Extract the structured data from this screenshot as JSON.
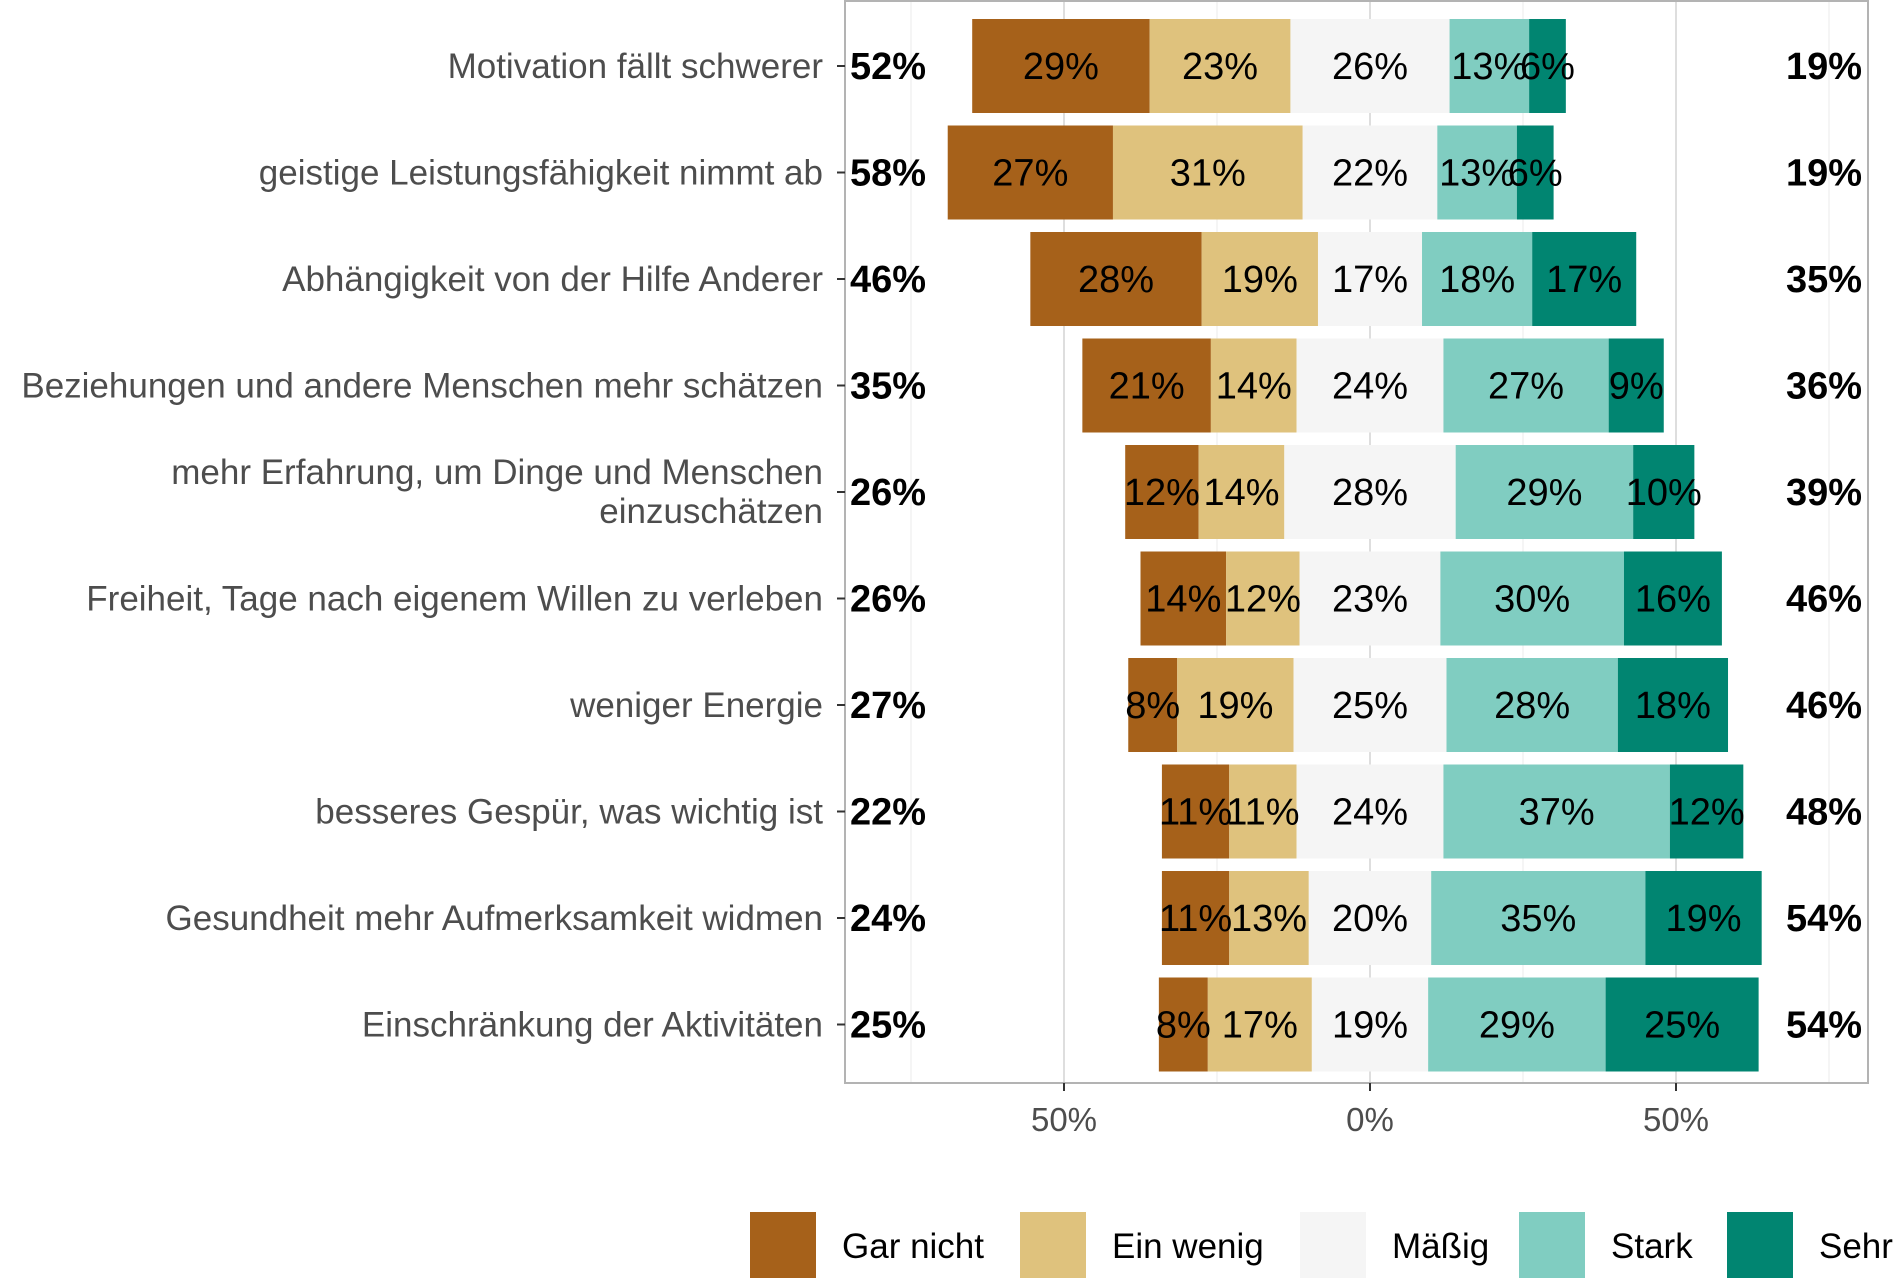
{
  "chart_data": {
    "type": "bar",
    "orientation": "horizontal",
    "stacked": "diverging",
    "title": "",
    "xlabel": "",
    "ylabel": "",
    "xlim": [
      -100,
      100
    ],
    "x_ticks": [
      -50,
      0,
      50
    ],
    "x_tick_labels": [
      "50%",
      "0%",
      "50%"
    ],
    "grid": true,
    "legend_position": "bottom",
    "levels": [
      "Gar nicht",
      "Ein wenig",
      "Mäßig",
      "Stark",
      "Sehr"
    ],
    "colors": {
      "Gar nicht": "#a6611a",
      "Ein wenig": "#dfc27d",
      "Mäßig": "#f5f5f5",
      "Stark": "#80cdc1",
      "Sehr": "#018571"
    },
    "categories": [
      {
        "label": [
          "Motivation fällt schwerer"
        ],
        "values": [
          29,
          23,
          26,
          13,
          6
        ],
        "value_labels": [
          "29%",
          "23%",
          "26%",
          "13%",
          "6%"
        ],
        "low": "52%",
        "high": "19%"
      },
      {
        "label": [
          "geistige Leistungsfähigkeit nimmt ab"
        ],
        "values": [
          27,
          31,
          22,
          13,
          6
        ],
        "value_labels": [
          "27%",
          "31%",
          "22%",
          "13%",
          "6%"
        ],
        "low": "58%",
        "high": "19%"
      },
      {
        "label": [
          "Abhängigkeit von der Hilfe Anderer"
        ],
        "values": [
          28,
          19,
          17,
          18,
          17
        ],
        "value_labels": [
          "28%",
          "19%",
          "17%",
          "18%",
          "17%"
        ],
        "low": "46%",
        "high": "35%"
      },
      {
        "label": [
          "Beziehungen und andere Menschen mehr schätzen"
        ],
        "values": [
          21,
          14,
          24,
          27,
          9
        ],
        "value_labels": [
          "21%",
          "14%",
          "24%",
          "27%",
          "9%"
        ],
        "low": "35%",
        "high": "36%"
      },
      {
        "label": [
          "mehr Erfahrung, um Dinge und Menschen",
          "einzuschätzen"
        ],
        "values": [
          12,
          14,
          28,
          29,
          10
        ],
        "value_labels": [
          "12%",
          "14%",
          "28%",
          "29%",
          "10%"
        ],
        "low": "26%",
        "high": "39%"
      },
      {
        "label": [
          "Freiheit, Tage nach eigenem Willen zu verleben"
        ],
        "values": [
          14,
          12,
          23,
          30,
          16
        ],
        "value_labels": [
          "14%",
          "12%",
          "23%",
          "30%",
          "16%"
        ],
        "low": "26%",
        "high": "46%"
      },
      {
        "label": [
          "weniger Energie"
        ],
        "values": [
          8,
          19,
          25,
          28,
          18
        ],
        "value_labels": [
          "8%",
          "19%",
          "25%",
          "28%",
          "18%"
        ],
        "low": "27%",
        "high": "46%"
      },
      {
        "label": [
          "besseres Gespür, was wichtig ist"
        ],
        "values": [
          11,
          11,
          24,
          37,
          12
        ],
        "value_labels": [
          "11%",
          "11%",
          "24%",
          "37%",
          "12%"
        ],
        "low": "22%",
        "high": "48%"
      },
      {
        "label": [
          "Gesundheit mehr Aufmerksamkeit widmen"
        ],
        "values": [
          11,
          13,
          20,
          35,
          19
        ],
        "value_labels": [
          "11%",
          "13%",
          "20%",
          "35%",
          "19%"
        ],
        "low": "24%",
        "high": "54%"
      },
      {
        "label": [
          "Einschränkung der Aktivitäten"
        ],
        "values": [
          8,
          17,
          19,
          29,
          25
        ],
        "value_labels": [
          "8%",
          "17%",
          "19%",
          "29%",
          "25%"
        ],
        "low": "25%",
        "high": "54%"
      }
    ]
  }
}
